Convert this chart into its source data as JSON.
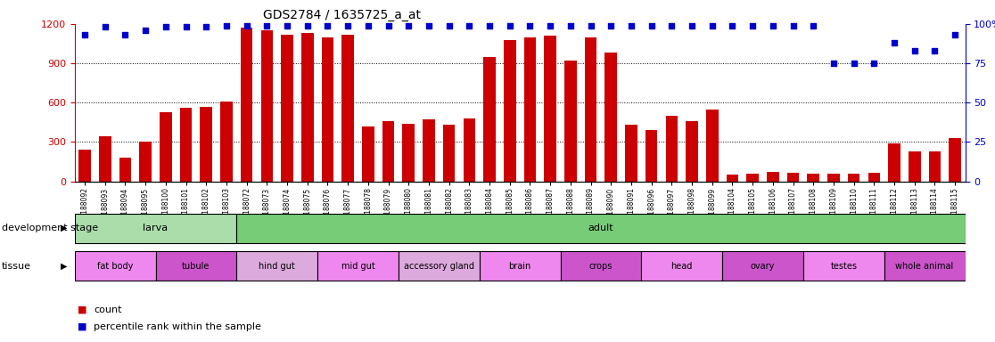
{
  "title": "GDS2784 / 1635725_a_at",
  "samples": [
    "GSM188092",
    "GSM188093",
    "GSM188094",
    "GSM188095",
    "GSM188100",
    "GSM188101",
    "GSM188102",
    "GSM188103",
    "GSM188072",
    "GSM188073",
    "GSM188074",
    "GSM188075",
    "GSM188076",
    "GSM188077",
    "GSM188078",
    "GSM188079",
    "GSM188080",
    "GSM188081",
    "GSM188082",
    "GSM188083",
    "GSM188084",
    "GSM188085",
    "GSM188086",
    "GSM188087",
    "GSM188088",
    "GSM188089",
    "GSM188090",
    "GSM188091",
    "GSM188096",
    "GSM188097",
    "GSM188098",
    "GSM188099",
    "GSM188104",
    "GSM188105",
    "GSM188106",
    "GSM188107",
    "GSM188108",
    "GSM188109",
    "GSM188110",
    "GSM188111",
    "GSM188112",
    "GSM188113",
    "GSM188114",
    "GSM188115"
  ],
  "counts": [
    240,
    340,
    180,
    300,
    530,
    560,
    570,
    610,
    1170,
    1150,
    1120,
    1130,
    1100,
    1120,
    420,
    460,
    440,
    470,
    430,
    480,
    950,
    1080,
    1100,
    1110,
    920,
    1100,
    980,
    430,
    390,
    500,
    460,
    550,
    50,
    60,
    70,
    65,
    60,
    60,
    60,
    65,
    290,
    230,
    230,
    330
  ],
  "percentiles": [
    93,
    98,
    93,
    96,
    98,
    98,
    98,
    99,
    99,
    99,
    99,
    99,
    99,
    99,
    99,
    99,
    99,
    99,
    99,
    99,
    99,
    99,
    99,
    99,
    99,
    99,
    99,
    99,
    99,
    99,
    99,
    99,
    99,
    99,
    99,
    99,
    99,
    75,
    75,
    75,
    88,
    83,
    83,
    93
  ],
  "ylim_left": [
    0,
    1200
  ],
  "ylim_right": [
    0,
    100
  ],
  "yticks_left": [
    0,
    300,
    600,
    900,
    1200
  ],
  "yticks_right": [
    0,
    25,
    50,
    75,
    100
  ],
  "bar_color": "#cc0000",
  "dot_color": "#0000cc",
  "dev_stage_groups": [
    {
      "label": "larva",
      "start": 0,
      "end": 8,
      "color": "#aaddaa"
    },
    {
      "label": "adult",
      "start": 8,
      "end": 44,
      "color": "#77cc77"
    }
  ],
  "tissue_groups": [
    {
      "label": "fat body",
      "start": 0,
      "end": 4,
      "color": "#ee88ee"
    },
    {
      "label": "tubule",
      "start": 4,
      "end": 8,
      "color": "#cc55cc"
    },
    {
      "label": "hind gut",
      "start": 8,
      "end": 12,
      "color": "#ddaadd"
    },
    {
      "label": "mid gut",
      "start": 12,
      "end": 16,
      "color": "#ee88ee"
    },
    {
      "label": "accessory gland",
      "start": 16,
      "end": 20,
      "color": "#ddaadd"
    },
    {
      "label": "brain",
      "start": 20,
      "end": 24,
      "color": "#ee88ee"
    },
    {
      "label": "crops",
      "start": 24,
      "end": 28,
      "color": "#cc55cc"
    },
    {
      "label": "head",
      "start": 28,
      "end": 32,
      "color": "#ee88ee"
    },
    {
      "label": "ovary",
      "start": 32,
      "end": 36,
      "color": "#cc55cc"
    },
    {
      "label": "testes",
      "start": 36,
      "end": 40,
      "color": "#ee88ee"
    },
    {
      "label": "whole animal",
      "start": 40,
      "end": 44,
      "color": "#cc55cc"
    }
  ],
  "legend_count_color": "#cc0000",
  "legend_dot_color": "#0000cc",
  "background_color": "#ffffff",
  "label_row1": "development stage",
  "label_row2": "tissue",
  "title_color": "#000000",
  "left_axis_color": "#cc0000",
  "right_axis_color": "#0000cc"
}
